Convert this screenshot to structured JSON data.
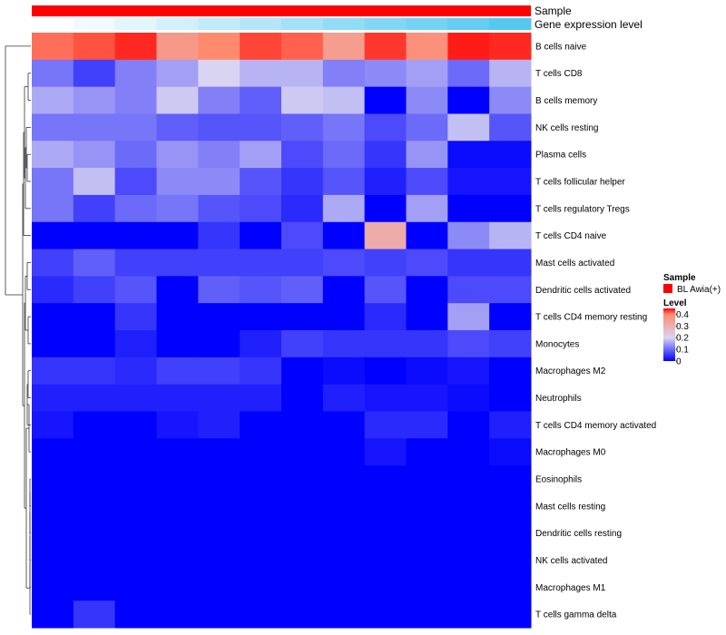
{
  "chart_data": {
    "type": "heatmap",
    "annotations": {
      "sample_label": "Sample",
      "expression_label": "Gene expression level"
    },
    "rows": [
      "B cells naive",
      "T cells CD8",
      "B cells memory",
      "NK cells resting",
      "Plasma cells",
      "T cells follicular helper",
      "T cells regulatory  Tregs",
      "T cells CD4 naive",
      "Mast cells activated",
      "Dendritic cells activated",
      "T cells CD4 memory resting",
      "Monocytes",
      "Macrophages M2",
      "Neutrophils",
      "T cells CD4 memory activated",
      "Macrophages M0",
      "Eosinophils",
      "Mast cells resting",
      "Dendritic cells resting",
      "NK cells activated",
      "Macrophages M1",
      "T cells gamma delta"
    ],
    "values": [
      [
        0.42,
        0.44,
        0.47,
        0.36,
        0.4,
        0.45,
        0.43,
        0.35,
        0.46,
        0.38,
        0.48,
        0.47
      ],
      [
        0.11,
        0.06,
        0.12,
        0.15,
        0.2,
        0.17,
        0.17,
        0.12,
        0.13,
        0.15,
        0.1,
        0.17
      ],
      [
        0.16,
        0.14,
        0.12,
        0.19,
        0.12,
        0.09,
        0.19,
        0.18,
        0.0,
        0.13,
        0.0,
        0.13
      ],
      [
        0.11,
        0.11,
        0.11,
        0.09,
        0.08,
        0.08,
        0.09,
        0.11,
        0.07,
        0.1,
        0.18,
        0.08
      ],
      [
        0.16,
        0.14,
        0.1,
        0.14,
        0.12,
        0.15,
        0.07,
        0.1,
        0.05,
        0.14,
        0.01,
        0.01
      ],
      [
        0.11,
        0.18,
        0.07,
        0.13,
        0.13,
        0.08,
        0.05,
        0.08,
        0.03,
        0.07,
        0.02,
        0.02
      ],
      [
        0.11,
        0.06,
        0.1,
        0.11,
        0.08,
        0.07,
        0.04,
        0.16,
        0.0,
        0.15,
        0.0,
        0.0
      ],
      [
        0.0,
        0.0,
        0.0,
        0.0,
        0.05,
        0.0,
        0.07,
        0.0,
        0.31,
        0.0,
        0.13,
        0.17
      ],
      [
        0.06,
        0.09,
        0.06,
        0.06,
        0.06,
        0.06,
        0.06,
        0.07,
        0.06,
        0.07,
        0.05,
        0.05
      ],
      [
        0.04,
        0.06,
        0.08,
        0.0,
        0.09,
        0.08,
        0.09,
        0.0,
        0.08,
        0.0,
        0.07,
        0.07
      ],
      [
        0.0,
        0.0,
        0.05,
        0.0,
        0.0,
        0.0,
        0.0,
        0.0,
        0.04,
        0.0,
        0.15,
        0.0
      ],
      [
        0.0,
        0.0,
        0.03,
        0.0,
        0.0,
        0.03,
        0.06,
        0.05,
        0.05,
        0.05,
        0.07,
        0.06
      ],
      [
        0.05,
        0.05,
        0.04,
        0.06,
        0.06,
        0.05,
        0.0,
        0.01,
        0.0,
        0.01,
        0.02,
        0.0
      ],
      [
        0.03,
        0.03,
        0.03,
        0.03,
        0.03,
        0.03,
        0.0,
        0.03,
        0.02,
        0.02,
        0.01,
        0.0
      ],
      [
        0.02,
        0.0,
        0.0,
        0.02,
        0.03,
        0.0,
        0.0,
        0.0,
        0.04,
        0.04,
        0.0,
        0.03
      ],
      [
        0.0,
        0.0,
        0.0,
        0.0,
        0.0,
        0.0,
        0.0,
        0.0,
        0.02,
        0.0,
        0.0,
        0.01
      ],
      [
        0.0,
        0.0,
        0.0,
        0.0,
        0.0,
        0.0,
        0.0,
        0.0,
        0.0,
        0.0,
        0.0,
        0.0
      ],
      [
        0.0,
        0.0,
        0.0,
        0.0,
        0.0,
        0.0,
        0.0,
        0.0,
        0.0,
        0.0,
        0.0,
        0.0
      ],
      [
        0.0,
        0.0,
        0.0,
        0.0,
        0.0,
        0.0,
        0.0,
        0.0,
        0.0,
        0.0,
        0.0,
        0.0
      ],
      [
        0.0,
        0.0,
        0.0,
        0.0,
        0.0,
        0.0,
        0.0,
        0.0,
        0.0,
        0.0,
        0.0,
        0.0
      ],
      [
        0.0,
        0.0,
        0.0,
        0.0,
        0.0,
        0.0,
        0.0,
        0.0,
        0.0,
        0.0,
        0.0,
        0.0
      ],
      [
        0.0,
        0.05,
        0.0,
        0.0,
        0.0,
        0.0,
        0.0,
        0.0,
        0.0,
        0.0,
        0.0,
        0.0
      ]
    ],
    "expression_level": [
      0.0,
      0.09,
      0.18,
      0.27,
      0.36,
      0.45,
      0.55,
      0.64,
      0.73,
      0.82,
      0.91,
      1.0
    ],
    "color_scale": {
      "domain": [
        0,
        0.2,
        0.4,
        0.5
      ],
      "colors": [
        "#0000ff",
        "#d8d4f2",
        "#ff8a6e",
        "#ff0000"
      ]
    },
    "expression_colors": [
      "#ffffff",
      "#55c8f0"
    ],
    "sample_color": "#ff0000",
    "legend": {
      "sample_title": "Sample",
      "sample_entry": "BL Awia(+)",
      "level_title": "Level",
      "ticks": [
        "0.4",
        "0.3",
        "0.2",
        "0.1",
        "0"
      ],
      "tick_values": [
        0.4,
        0.3,
        0.2,
        0.1,
        0
      ],
      "range": [
        0,
        0.45
      ]
    }
  }
}
